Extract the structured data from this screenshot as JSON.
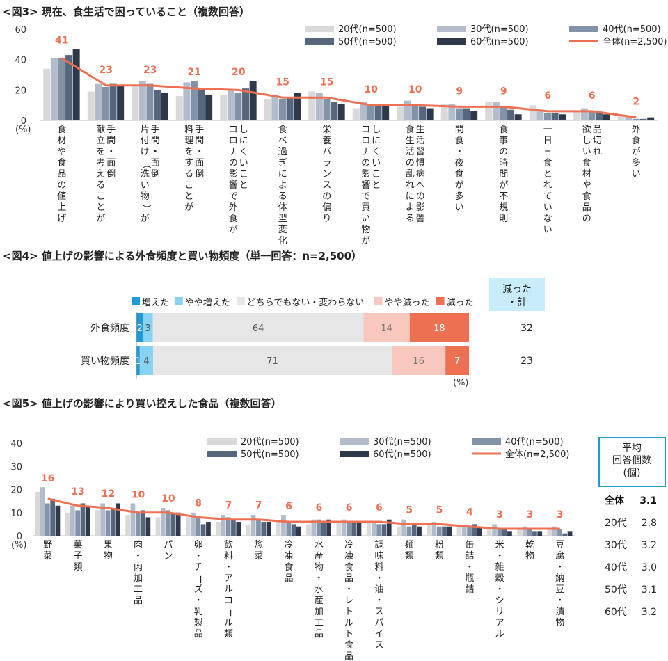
{
  "colors": {
    "s20": "#d9d9d9",
    "s30": "#b3bccb",
    "s40": "#8292a7",
    "s50": "#56677d",
    "s60": "#2e3a4c",
    "total": "#ee7053",
    "inc": "#1f9ad6",
    "slight_inc": "#89d2f2",
    "neutral": "#e6e6e6",
    "slight_dec": "#f8c8bf",
    "dec": "#ee7053",
    "box_fill": "#c9ecfb",
    "box_border": "#1f9ad6"
  },
  "chart_data": [
    {
      "type": "bar",
      "title": "<図3> 現在、食生活で困っていること（複数回答）",
      "ylabel": "(%)",
      "ylim": [
        0,
        60
      ],
      "yticks": [
        0,
        20,
        40,
        60
      ],
      "categories": [
        [
          "食材や食品の値上げ"
        ],
        [
          "献立を考えることが",
          "手間・面倒"
        ],
        [
          "片付け（洗い物）が",
          "手間・面倒"
        ],
        [
          "料理をすることが",
          "手間・面倒"
        ],
        [
          "コロナの影響で外食が",
          "しにくいこと"
        ],
        [
          "食べ過ぎによる体型変化"
        ],
        [
          "栄養バランスの偏り"
        ],
        [
          "コロナの影響で買い物が",
          "しにくいこと"
        ],
        [
          "食生活の乱れによる",
          "生活習慣病への影響"
        ],
        [
          "間食・夜食が多い"
        ],
        [
          "食事の時間が不規則"
        ],
        [
          "一日三食とれていない"
        ],
        [
          "欲しい食材や食品の",
          "品切れ"
        ],
        [
          "外食が多い"
        ]
      ],
      "series": [
        {
          "name": "20代(n=500)",
          "values": [
            34,
            19,
            23,
            16,
            17,
            14,
            19,
            8,
            9,
            11,
            12,
            10,
            6,
            3
          ]
        },
        {
          "name": "30代(n=500)",
          "values": [
            41,
            24,
            26,
            25,
            20,
            17,
            18,
            12,
            13,
            11,
            12,
            7,
            8,
            3
          ]
        },
        {
          "name": "40代(n=500)",
          "values": [
            41,
            22,
            24,
            26,
            18,
            14,
            14,
            10,
            10,
            8,
            9,
            5,
            6,
            1
          ]
        },
        {
          "name": "50代(n=500)",
          "values": [
            43,
            24,
            20,
            21,
            21,
            15,
            12,
            11,
            9,
            8,
            7,
            5,
            5,
            1
          ]
        },
        {
          "name": "60代(n=500)",
          "values": [
            47,
            23,
            18,
            17,
            26,
            18,
            11,
            10,
            8,
            6,
            4,
            4,
            4,
            2
          ]
        }
      ],
      "total": {
        "name": "全体(n=2,500)",
        "values": [
          41,
          23,
          23,
          21,
          20,
          15,
          15,
          10,
          10,
          9,
          9,
          6,
          6,
          2
        ]
      }
    },
    {
      "type": "bar",
      "stacked": true,
      "orientation": "horizontal",
      "title": "<図4> 値上げの影響による外食頻度と買い物頻度（単一回答：n=2,500）",
      "unit_label": "(%)",
      "legend": [
        "増えた",
        "やや増えた",
        "どちらでもない・変わらない",
        "やや減った",
        "減った"
      ],
      "side_header": [
        "減った",
        "・計"
      ],
      "rows": [
        {
          "label": "外食頻度",
          "values": [
            2,
            3,
            64,
            14,
            18
          ],
          "total_decrease": 32
        },
        {
          "label": "買い物頻度",
          "values": [
            1,
            4,
            71,
            16,
            7
          ],
          "total_decrease": 23
        }
      ]
    },
    {
      "type": "bar",
      "title": "<図5> 値上げの影響により買い控えした食品（複数回答）",
      "ylabel": "(%)",
      "ylim": [
        0,
        40
      ],
      "yticks": [
        0,
        10,
        20,
        30,
        40
      ],
      "categories": [
        [
          "野菜"
        ],
        [
          "菓子類"
        ],
        [
          "果物"
        ],
        [
          "肉・肉加工品"
        ],
        [
          "パン"
        ],
        [
          "卵・チーズ・乳製品"
        ],
        [
          "飲料・アルコール類"
        ],
        [
          "惣菜"
        ],
        [
          "冷凍食品"
        ],
        [
          "水産物・水産加工品"
        ],
        [
          "冷凍食品・レトルト食品"
        ],
        [
          "調味料・油・スパイス"
        ],
        [
          "麺類"
        ],
        [
          "粉類"
        ],
        [
          "缶詰・瓶詰"
        ],
        [
          "米・雑穀・シリアル"
        ],
        [
          "乾物"
        ],
        [
          "豆腐・納豆・漬物"
        ]
      ],
      "series": [
        {
          "name": "20代(n=500)",
          "values": [
            19,
            10,
            11,
            9,
            8,
            8,
            6,
            5,
            6,
            5,
            6,
            6,
            4,
            5,
            4,
            3,
            3,
            3
          ]
        },
        {
          "name": "30代(n=500)",
          "values": [
            21,
            13,
            14,
            14,
            12,
            10,
            9,
            9,
            9,
            7,
            7,
            6,
            7,
            6,
            4,
            5,
            4,
            4
          ]
        },
        {
          "name": "40代(n=500)",
          "values": [
            14,
            11,
            11,
            10,
            11,
            8,
            8,
            7,
            6,
            7,
            6,
            5,
            4,
            4,
            4,
            3,
            3,
            3
          ]
        },
        {
          "name": "50代(n=500)",
          "values": [
            16,
            14,
            12,
            11,
            10,
            5,
            7,
            6,
            5,
            6,
            6,
            5,
            5,
            4,
            5,
            3,
            2,
            1
          ]
        },
        {
          "name": "60代(n=500)",
          "values": [
            13,
            13,
            14,
            8,
            10,
            6,
            6,
            6,
            4,
            7,
            6,
            7,
            4,
            4,
            4,
            2,
            2,
            2
          ]
        }
      ],
      "total": {
        "name": "全体(n=2,500)",
        "values": [
          16,
          13,
          12,
          10,
          10,
          8,
          7,
          7,
          6,
          6,
          6,
          6,
          5,
          5,
          4,
          3,
          3,
          3
        ]
      },
      "average_box": {
        "header": [
          "平均",
          "回答個数",
          "(個)"
        ],
        "rows": [
          {
            "label": "全体",
            "value": "3.1"
          },
          {
            "label": "20代",
            "value": "2.8"
          },
          {
            "label": "30代",
            "value": "3.2"
          },
          {
            "label": "40代",
            "value": "3.0"
          },
          {
            "label": "50代",
            "value": "3.1"
          },
          {
            "label": "60代",
            "value": "3.2"
          }
        ]
      }
    }
  ]
}
